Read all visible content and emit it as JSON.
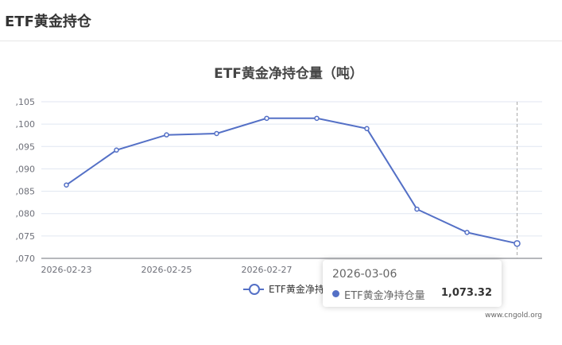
{
  "header": {
    "title": "ETF黄金持仓"
  },
  "chart_data": {
    "type": "line",
    "title": "ETF黄金净持仓量（吨）",
    "x": [
      "2026-02-23",
      "2026-02-24",
      "2026-02-25",
      "2026-02-26",
      "2026-02-27",
      "2026-03-02",
      "2026-03-03",
      "2026-03-04",
      "2026-03-05",
      "2026-03-06"
    ],
    "x_tick_labels": [
      "2026-02-23",
      "2026-02-25",
      "2026-02-27"
    ],
    "series": [
      {
        "name": "ETF黄金净持仓量",
        "values": [
          1086.4,
          1094.2,
          1097.6,
          1097.9,
          1101.3,
          1101.3,
          1099.0,
          1081.0,
          1075.8,
          1073.32
        ]
      }
    ],
    "y_tick_labels": [
      ",070",
      ",075",
      ",080",
      ",085",
      ",090",
      ",095",
      ",100",
      ",105"
    ],
    "ylim": [
      1070,
      1105
    ],
    "grid": true,
    "legend": "bottom-center",
    "color": "#5470c6"
  },
  "tooltip": {
    "date": "2026-03-06",
    "series_name": "ETF黄金净持仓量",
    "value": "1,073.32"
  },
  "watermark": "www.cngold.org"
}
